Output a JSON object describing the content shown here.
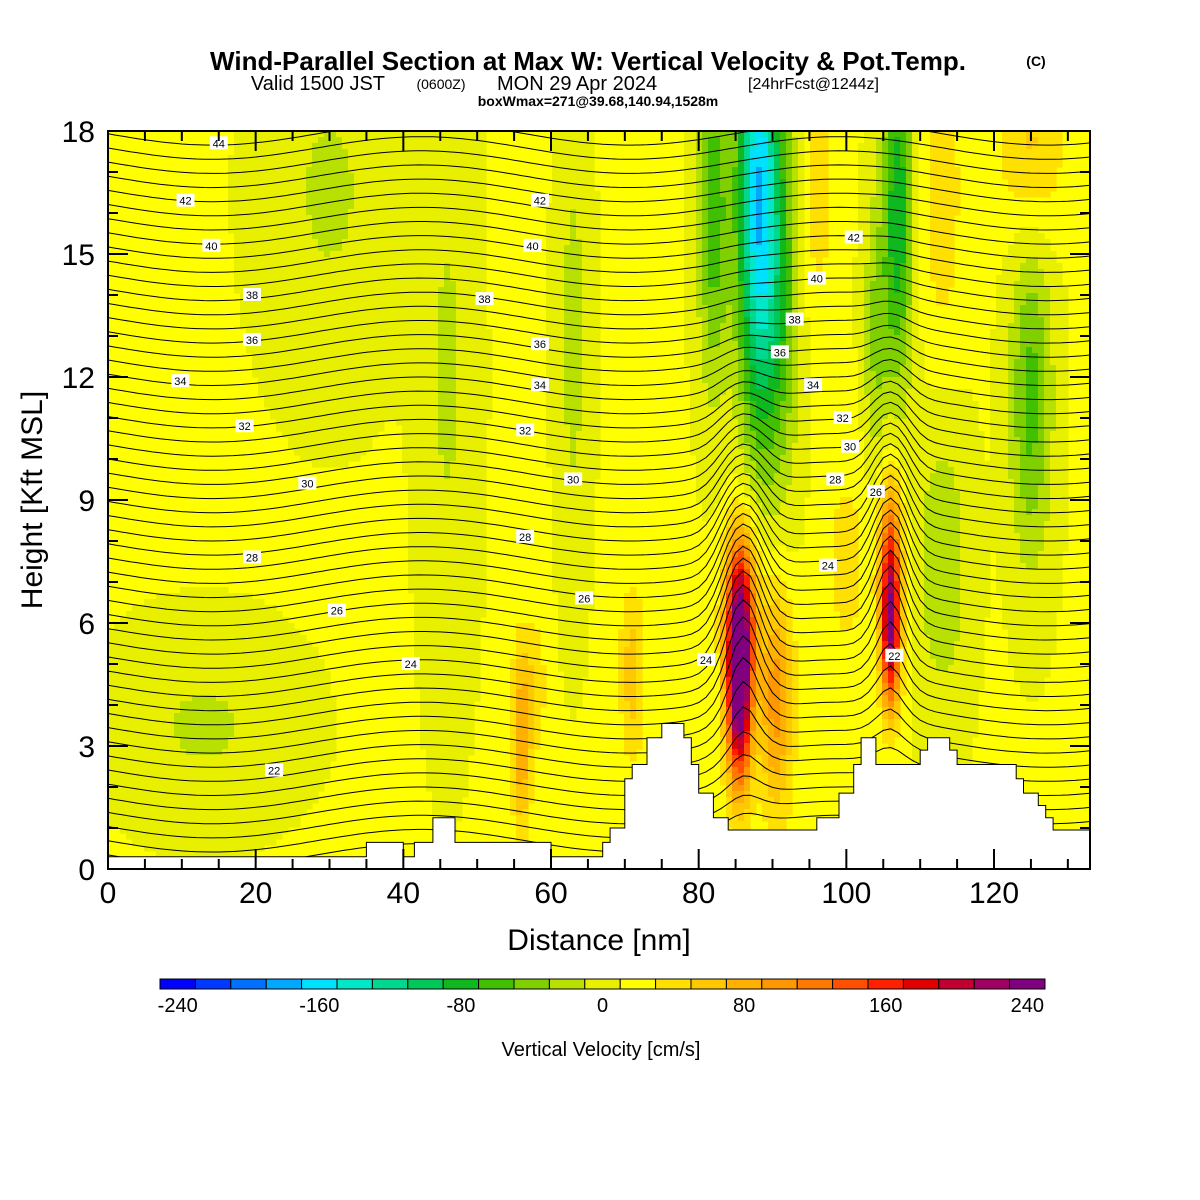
{
  "figure": {
    "title_main": "Wind-Parallel Section at Max W: Vertical Velocity & Pot.Temp.",
    "title_copyright": "(C)",
    "title_line2_a": "Valid 1500 JST",
    "title_line2_b": "(0600Z)",
    "title_line2_c": "MON 29 Apr 2024",
    "title_line2_d": "[24hrFcst@1244z]",
    "title_line3": "boxWmax=271@39.68,140.94,1528m"
  },
  "chart_data": {
    "type": "heatmap",
    "title": "Wind-Parallel Section at Max W: Vertical Velocity & Pot.Temp.",
    "xlabel": "Distance [nm]",
    "ylabel": "Height [Kft MSL]",
    "xlim": [
      0,
      133
    ],
    "ylim": [
      0,
      18
    ],
    "x_ticks": [
      "0",
      "20",
      "40",
      "60",
      "80",
      "100",
      "120"
    ],
    "x_tick_values": [
      0,
      20,
      40,
      60,
      80,
      100,
      120
    ],
    "y_ticks": [
      "0",
      "3",
      "6",
      "9",
      "12",
      "15",
      "18"
    ],
    "y_tick_values": [
      0,
      3,
      6,
      9,
      12,
      15,
      18
    ],
    "grid": false,
    "colorbar": {
      "label": "Vertical Velocity [cm/s]",
      "min": -250,
      "max": 250,
      "step": 20,
      "tick_labels": [
        "-240",
        "-160",
        "-80",
        "0",
        "80",
        "160",
        "240"
      ],
      "tick_values": [
        -240,
        -160,
        -80,
        0,
        80,
        160,
        240
      ],
      "colors": [
        "#0000ff",
        "#0038ff",
        "#0070ff",
        "#00a8ff",
        "#00e0ff",
        "#00e8c8",
        "#00d890",
        "#00c858",
        "#10b820",
        "#40c000",
        "#80d000",
        "#b8e000",
        "#e8f000",
        "#ffff00",
        "#ffe000",
        "#ffc800",
        "#ffb000",
        "#ff9800",
        "#ff7800",
        "#ff5000",
        "#ff2000",
        "#e00000",
        "#c00030",
        "#a00060",
        "#800080"
      ]
    },
    "terrain_kft": [
      [
        0,
        0.3
      ],
      [
        35,
        0.3
      ],
      [
        35,
        0.65
      ],
      [
        40,
        0.65
      ],
      [
        40,
        0.3
      ],
      [
        41.5,
        0.3
      ],
      [
        41.5,
        0.65
      ],
      [
        44,
        0.65
      ],
      [
        44,
        1.25
      ],
      [
        47,
        1.25
      ],
      [
        47,
        0.65
      ],
      [
        60,
        0.65
      ],
      [
        60,
        0.3
      ],
      [
        67,
        0.3
      ],
      [
        67,
        0.65
      ],
      [
        68,
        0.65
      ],
      [
        68,
        1.0
      ],
      [
        70,
        1.0
      ],
      [
        70,
        2.2
      ],
      [
        71,
        2.2
      ],
      [
        71,
        2.55
      ],
      [
        73,
        2.55
      ],
      [
        73,
        3.2
      ],
      [
        75,
        3.2
      ],
      [
        75,
        3.55
      ],
      [
        78,
        3.55
      ],
      [
        78,
        3.2
      ],
      [
        79,
        3.2
      ],
      [
        79,
        2.55
      ],
      [
        80,
        2.55
      ],
      [
        80,
        1.85
      ],
      [
        82,
        1.85
      ],
      [
        82,
        1.25
      ],
      [
        84,
        1.25
      ],
      [
        84,
        0.95
      ],
      [
        96,
        0.95
      ],
      [
        96,
        1.25
      ],
      [
        99,
        1.25
      ],
      [
        99,
        1.85
      ],
      [
        101,
        1.85
      ],
      [
        101,
        2.55
      ],
      [
        102,
        2.55
      ],
      [
        102,
        3.2
      ],
      [
        104,
        3.2
      ],
      [
        104,
        2.55
      ],
      [
        110,
        2.55
      ],
      [
        110,
        2.9
      ],
      [
        111,
        2.9
      ],
      [
        111,
        3.2
      ],
      [
        114,
        3.2
      ],
      [
        114,
        2.9
      ],
      [
        115,
        2.9
      ],
      [
        115,
        2.55
      ],
      [
        123,
        2.55
      ],
      [
        123,
        2.2
      ],
      [
        124,
        2.2
      ],
      [
        124,
        1.85
      ],
      [
        126,
        1.85
      ],
      [
        126,
        1.55
      ],
      [
        127,
        1.55
      ],
      [
        127,
        1.25
      ],
      [
        128,
        1.25
      ],
      [
        128,
        0.95
      ],
      [
        133,
        0.95
      ],
      [
        133,
        0
      ],
      [
        0,
        0
      ]
    ],
    "w_features": [
      {
        "x": 85.5,
        "y": 4.5,
        "sx": 1.2,
        "sy": 1.7,
        "w": 265
      },
      {
        "x": 85.8,
        "y": 6.6,
        "sx": 1.6,
        "sy": 1.4,
        "w": 110
      },
      {
        "x": 90.5,
        "y": 4.2,
        "sx": 1.6,
        "sy": 2.0,
        "w": 90
      },
      {
        "x": 106,
        "y": 5.7,
        "sx": 0.9,
        "sy": 1.3,
        "w": 190
      },
      {
        "x": 106,
        "y": 7.8,
        "sx": 1.1,
        "sy": 1.4,
        "w": 110
      },
      {
        "x": 56,
        "y": 3.2,
        "sx": 0.9,
        "sy": 1.6,
        "w": 80
      },
      {
        "x": 58,
        "y": 4.5,
        "sx": 1.0,
        "sy": 1.2,
        "w": 30
      },
      {
        "x": 71,
        "y": 4.8,
        "sx": 1.2,
        "sy": 1.5,
        "w": 50
      },
      {
        "x": 88,
        "y": 16.5,
        "sx": 2.0,
        "sy": 4.0,
        "w": -170
      },
      {
        "x": 82,
        "y": 16,
        "sx": 1.5,
        "sy": 3.0,
        "w": -75
      },
      {
        "x": 91,
        "y": 14,
        "sx": 2.0,
        "sy": 3.5,
        "w": -60
      },
      {
        "x": 107,
        "y": 16,
        "sx": 1.4,
        "sy": 3.0,
        "w": -100
      },
      {
        "x": 104,
        "y": 13,
        "sx": 1.2,
        "sy": 2.5,
        "w": -45
      },
      {
        "x": 125,
        "y": 11.5,
        "sx": 2.0,
        "sy": 2.8,
        "w": -70
      },
      {
        "x": 63,
        "y": 13,
        "sx": 1.5,
        "sy": 4.0,
        "w": -30
      },
      {
        "x": 46,
        "y": 12,
        "sx": 2.5,
        "sy": 5.0,
        "w": -25
      },
      {
        "x": 13,
        "y": 3.5,
        "sx": 8.0,
        "sy": 1.5,
        "w": -25
      },
      {
        "x": 30,
        "y": 16.5,
        "sx": 6.0,
        "sy": 3.0,
        "w": -25
      },
      {
        "x": 96,
        "y": 16.5,
        "sx": 1.5,
        "sy": 2.5,
        "w": 30
      },
      {
        "x": 113,
        "y": 16.5,
        "sx": 2.0,
        "sy": 3.0,
        "w": 30
      },
      {
        "x": 125,
        "y": 17.5,
        "sx": 3.0,
        "sy": 1.5,
        "w": 45
      },
      {
        "x": 100,
        "y": 7.5,
        "sx": 2.5,
        "sy": 2.0,
        "w": 25
      },
      {
        "x": 113,
        "y": 7.5,
        "sx": 2.5,
        "sy": 2.5,
        "w": -40
      }
    ],
    "contour_labels": [
      {
        "text": "44",
        "x": 15,
        "y": 17.7
      },
      {
        "text": "42",
        "x": 10.5,
        "y": 16.3
      },
      {
        "text": "42",
        "x": 58.5,
        "y": 16.3
      },
      {
        "text": "42",
        "x": 101,
        "y": 15.4
      },
      {
        "text": "40",
        "x": 14,
        "y": 15.2
      },
      {
        "text": "40",
        "x": 57.5,
        "y": 15.2
      },
      {
        "text": "40",
        "x": 96,
        "y": 14.4
      },
      {
        "text": "38",
        "x": 19.5,
        "y": 14.0
      },
      {
        "text": "38",
        "x": 51,
        "y": 13.9
      },
      {
        "text": "38",
        "x": 93,
        "y": 13.4
      },
      {
        "text": "36",
        "x": 19.5,
        "y": 12.9
      },
      {
        "text": "36",
        "x": 58.5,
        "y": 12.8
      },
      {
        "text": "36",
        "x": 91,
        "y": 12.6
      },
      {
        "text": "34",
        "x": 9.8,
        "y": 11.9
      },
      {
        "text": "34",
        "x": 58.5,
        "y": 11.8
      },
      {
        "text": "34",
        "x": 95.5,
        "y": 11.8
      },
      {
        "text": "32",
        "x": 18.5,
        "y": 10.8
      },
      {
        "text": "32",
        "x": 56.5,
        "y": 10.7
      },
      {
        "text": "32",
        "x": 99.5,
        "y": 11.0
      },
      {
        "text": "30",
        "x": 27,
        "y": 9.4
      },
      {
        "text": "30",
        "x": 63,
        "y": 9.5
      },
      {
        "text": "30",
        "x": 100.5,
        "y": 10.3
      },
      {
        "text": "28",
        "x": 19.5,
        "y": 7.6
      },
      {
        "text": "28",
        "x": 56.5,
        "y": 8.1
      },
      {
        "text": "28",
        "x": 98.5,
        "y": 9.5
      },
      {
        "text": "26",
        "x": 31,
        "y": 6.3
      },
      {
        "text": "26",
        "x": 64.5,
        "y": 6.6
      },
      {
        "text": "26",
        "x": 104,
        "y": 9.2
      },
      {
        "text": "24",
        "x": 41,
        "y": 5.0
      },
      {
        "text": "24",
        "x": 81,
        "y": 5.1
      },
      {
        "text": "24",
        "x": 97.5,
        "y": 7.4
      },
      {
        "text": "22",
        "x": 22.5,
        "y": 2.4
      },
      {
        "text": "22",
        "x": 106.5,
        "y": 5.2
      }
    ]
  }
}
